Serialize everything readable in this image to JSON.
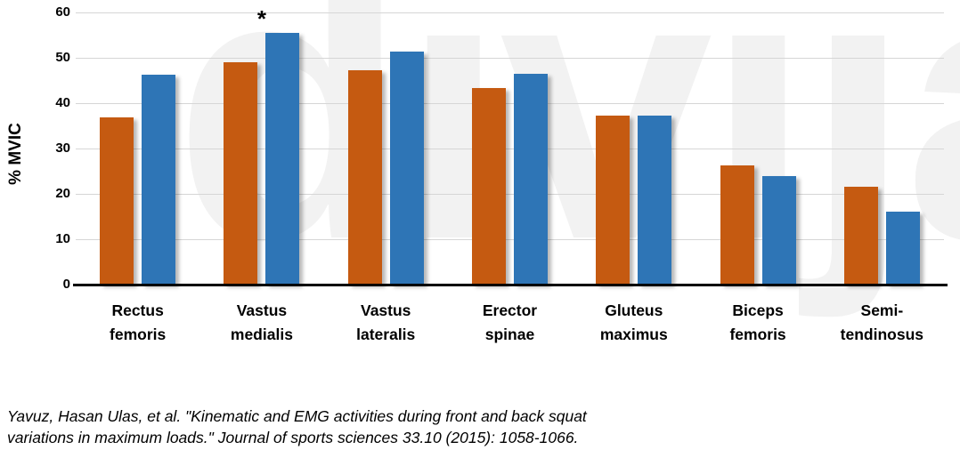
{
  "watermark": "divijak",
  "chart_data": {
    "type": "bar",
    "ylabel": "% MVIC",
    "ylim": [
      0,
      60
    ],
    "yticks": [
      0,
      10,
      20,
      30,
      40,
      50,
      60
    ],
    "grid": true,
    "legend": "none",
    "categories": [
      "Rectus\nfemoris",
      "Vastus\nmedialis",
      "Vastus\nlateralis",
      "Erector\nspinae",
      "Gluteus\nmaximus",
      "Biceps\nfemoris",
      "Semi-\ntendinosus"
    ],
    "series": [
      {
        "name": "orange",
        "color": "#C55A11",
        "values": [
          36.8,
          49.0,
          47.2,
          43.3,
          37.2,
          26.3,
          21.5
        ]
      },
      {
        "name": "blue",
        "color": "#2E75B6",
        "values": [
          46.2,
          55.5,
          51.3,
          46.4,
          37.2,
          24.0,
          16.0
        ]
      }
    ],
    "annotations": [
      {
        "text": "*",
        "category_index": 1,
        "series_index": 1
      }
    ]
  },
  "citation": "Yavuz, Hasan Ulas, et al. \"Kinematic and EMG activities during front and back squat\nvariations in maximum loads.\" Journal of sports sciences 33.10 (2015): 1058-1066."
}
